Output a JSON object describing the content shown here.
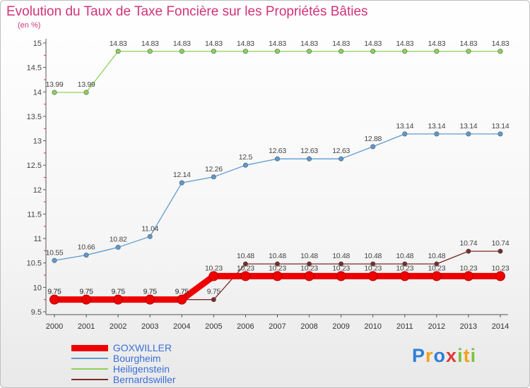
{
  "chart_data": {
    "type": "line",
    "title": "Evolution du Taux de Taxe Foncière sur les Propriétés Bâties",
    "unit_label": "(en %)",
    "x": [
      "2000",
      "2001",
      "2002",
      "2003",
      "2004",
      "2005",
      "2006",
      "2007",
      "2008",
      "2009",
      "2010",
      "2011",
      "2012",
      "2013",
      "2014"
    ],
    "ylim": [
      9.5,
      15
    ],
    "yticks": [
      "9.5",
      "10",
      "10.5",
      "11",
      "11.5",
      "12",
      "12.5",
      "13",
      "13.5",
      "14",
      "14.5",
      "15"
    ],
    "series": [
      {
        "name": "GOXWILLER",
        "color": "#ee0000",
        "values": [
          9.75,
          9.75,
          9.75,
          9.75,
          9.75,
          10.23,
          10.23,
          10.23,
          10.23,
          10.23,
          10.23,
          10.23,
          10.23,
          10.23,
          10.23
        ],
        "labels": [
          "9.75",
          "9.75",
          "9.75",
          "9.75",
          "9.75",
          "10.23",
          "10.23",
          "10.23",
          "10.23",
          "10.23",
          "10.23",
          "10.23",
          "10.23",
          "10.23",
          "10.23"
        ]
      },
      {
        "name": "Bourgheim",
        "color": "#5c9ad2",
        "values": [
          10.55,
          10.66,
          10.82,
          11.04,
          12.14,
          12.26,
          12.5,
          12.63,
          12.63,
          12.63,
          12.88,
          13.14,
          13.14,
          13.14,
          13.14
        ],
        "labels": [
          "10.55",
          "10.66",
          "10.82",
          "11.04",
          "12.14",
          "12.26",
          "12.5",
          "12.63",
          "12.63",
          "12.63",
          "12.88",
          "13.14",
          "13.14",
          "13.14",
          "13.14"
        ]
      },
      {
        "name": "Heiligenstein",
        "color": "#8cd25a",
        "values": [
          13.99,
          13.99,
          14.83,
          14.83,
          14.83,
          14.83,
          14.83,
          14.83,
          14.83,
          14.83,
          14.83,
          14.83,
          14.83,
          14.83,
          14.83
        ],
        "labels": [
          "13.99",
          "13.99",
          "14.83",
          "14.83",
          "14.83",
          "14.83",
          "14.83",
          "14.83",
          "14.83",
          "14.83",
          "14.83",
          "14.83",
          "14.83",
          "14.83",
          "14.83"
        ]
      },
      {
        "name": "Bernardswiller",
        "color": "#7a2a2a",
        "values": [
          9.75,
          9.75,
          9.75,
          9.75,
          9.75,
          9.75,
          10.48,
          10.48,
          10.48,
          10.48,
          10.48,
          10.48,
          10.48,
          10.74,
          10.74
        ],
        "labels": [
          "9.75",
          "9.75",
          "9.75",
          "9.75",
          "9.75",
          "9.75",
          "10.48",
          "10.48",
          "10.48",
          "10.48",
          "10.48",
          "10.48",
          "10.48",
          "10.74",
          "10.74"
        ]
      }
    ]
  },
  "logo": {
    "letters": [
      "P",
      "r",
      "o",
      "x",
      "i",
      "t",
      "i"
    ],
    "colors": [
      "#2e7fd8",
      "#f2a21b",
      "#2e7fd8",
      "#e23a3a",
      "#7cc142",
      "#f2a21b",
      "#7cc142"
    ]
  }
}
